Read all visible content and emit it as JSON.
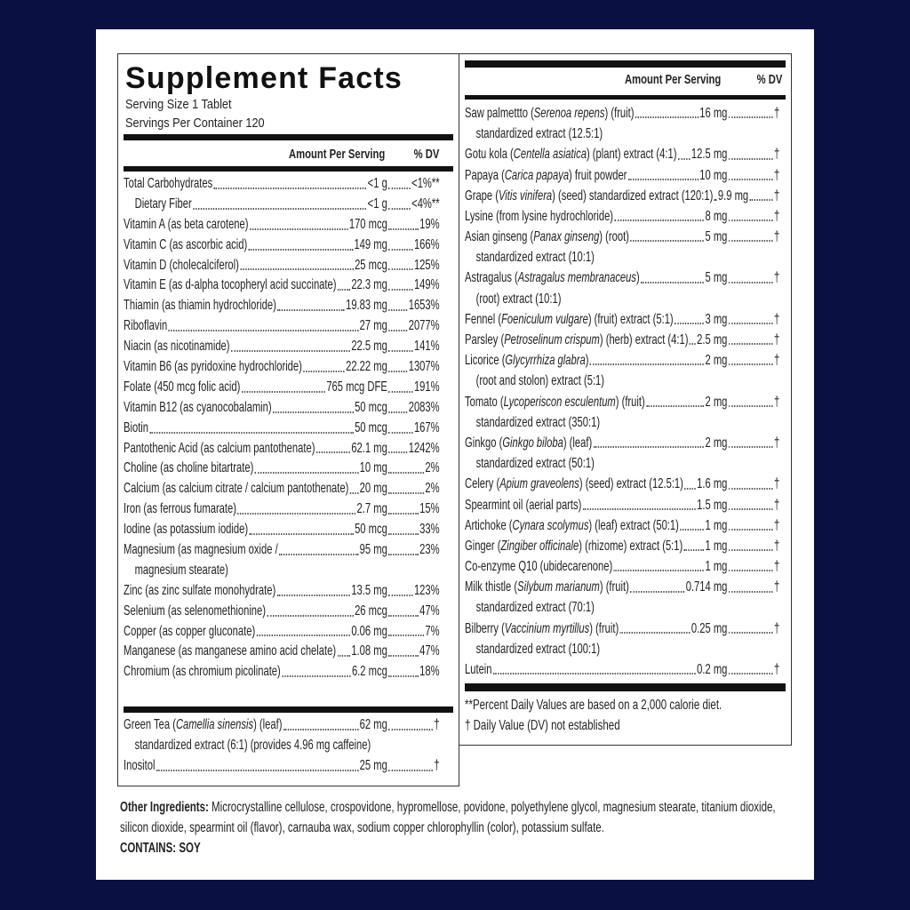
{
  "title": "Supplement Facts",
  "serving_size": "Serving Size 1 Tablet",
  "servings_per_container": "Servings Per Container 120",
  "header": {
    "amount": "Amount Per Serving",
    "dv": "% DV"
  },
  "left_rows": [
    {
      "name": "Total Carbohydrates",
      "amount": "<1 g",
      "dv": "<1%**"
    },
    {
      "name": "Dietary Fiber",
      "amount": "<1 g",
      "dv": "<4%**",
      "indent": true
    },
    {
      "name": "Vitamin A (as beta carotene)",
      "amount": "170 mcg",
      "dv": "19%"
    },
    {
      "name": "Vitamin C (as ascorbic acid)",
      "amount": "149 mg",
      "dv": "166%"
    },
    {
      "name": "Vitamin D (cholecalciferol)",
      "amount": "25 mcg",
      "dv": "125%"
    },
    {
      "name": "Vitamin E (as d-alpha tocopheryl acid succinate)",
      "amount": "22.3 mg",
      "dv": "149%"
    },
    {
      "name": "Thiamin (as thiamin hydrochloride)",
      "amount": "19.83 mg",
      "dv": "1653%"
    },
    {
      "name": "Riboflavin",
      "amount": "27 mg",
      "dv": "2077%"
    },
    {
      "name": "Niacin (as nicotinamide)",
      "amount": "22.5 mg",
      "dv": "141%"
    },
    {
      "name": "Vitamin B6 (as pyridoxine hydrochloride)",
      "amount": "22.22 mg",
      "dv": "1307%"
    },
    {
      "name": "Folate (450 mcg folic acid)",
      "amount": "765 mcg DFE",
      "dv": "191%"
    },
    {
      "name": "Vitamin B12 (as cyanocobalamin)",
      "amount": "50 mcg",
      "dv": "2083%"
    },
    {
      "name": "Biotin",
      "amount": "50 mcg",
      "dv": "167%"
    },
    {
      "name": "Pantothenic Acid (as calcium pantothenate)",
      "amount": "62.1 mg",
      "dv": "1242%"
    },
    {
      "name": "Choline (as choline bitartrate)",
      "amount": "10 mg",
      "dv": "2%"
    },
    {
      "name": "Calcium (as calcium citrate / calcium pantothenate)",
      "amount": "20 mg",
      "dv": "2%"
    },
    {
      "name": "Iron (as ferrous fumarate)",
      "amount": "2.7 mg",
      "dv": "15%"
    },
    {
      "name": "Iodine (as potassium iodide)",
      "amount": "50 mcg",
      "dv": "33%"
    },
    {
      "name": "Magnesium (as magnesium oxide /",
      "amount": "95 mg",
      "dv": "23%",
      "cont": "magnesium stearate)"
    },
    {
      "name": "Zinc (as zinc sulfate monohydrate)",
      "amount": "13.5 mg",
      "dv": "123%"
    },
    {
      "name": "Selenium (as selenomethionine)",
      "amount": "26 mcg",
      "dv": "47%"
    },
    {
      "name": "Copper (as copper gluconate)",
      "amount": "0.06 mg",
      "dv": "7%"
    },
    {
      "name": "Manganese (as manganese amino acid chelate)",
      "amount": "1.08 mg",
      "dv": "47%"
    },
    {
      "name": "Chromium (as chromium picolinate)",
      "amount": "6.2 mcg",
      "dv": "18%"
    }
  ],
  "left_rows_2": [
    {
      "pre": "Green Tea (",
      "it": "Camellia sinensis",
      "post": ") (leaf)",
      "amount": "62 mg",
      "dv": "†",
      "cont": "standardized extract (6:1) (provides 4.96 mg caffeine)"
    },
    {
      "pre": "Inositol",
      "amount": "25 mg",
      "dv": "†"
    }
  ],
  "right_rows": [
    {
      "pre": "Saw palmettto (",
      "it": "Serenoa repens",
      "post": ") (fruit)",
      "amount": "16 mg",
      "dv": "†",
      "cont": "standardized extract (12.5:1)"
    },
    {
      "pre": "Gotu kola (",
      "it": "Centella asiatica",
      "post": ") (plant) extract (4:1)",
      "amount": "12.5 mg",
      "dv": "†"
    },
    {
      "pre": "Papaya (",
      "it": "Carica papaya",
      "post": ") fruit powder",
      "amount": "10 mg",
      "dv": "†"
    },
    {
      "pre": "Grape (",
      "it": "Vitis vinifera",
      "post": ") (seed) standardized extract (120:1)",
      "amount": "9.9 mg",
      "dv": "†"
    },
    {
      "pre": "Lysine (from lysine hydrochloride)",
      "amount": "8 mg",
      "dv": "†"
    },
    {
      "pre": "Asian ginseng (",
      "it": "Panax ginseng",
      "post": ") (root)",
      "amount": "5 mg",
      "dv": "†",
      "cont": "standardized extract (10:1)"
    },
    {
      "pre": "Astragalus (",
      "it": "Astragalus membranaceus",
      "post": ")",
      "amount": "5 mg",
      "dv": "†",
      "cont": "(root) extract (10:1)"
    },
    {
      "pre": "Fennel (",
      "it": "Foeniculum vulgare",
      "post": ") (fruit) extract (5:1)",
      "amount": "3 mg",
      "dv": "†"
    },
    {
      "pre": "Parsley (",
      "it": "Petroselinum crispum",
      "post": ") (herb) extract (4:1)",
      "amount": "2.5 mg",
      "dv": "†"
    },
    {
      "pre": "Licorice (",
      "it": "Glycyrrhiza glabra",
      "post": ")",
      "amount": "2 mg",
      "dv": "†",
      "cont": "(root and stolon) extract (5:1)"
    },
    {
      "pre": "Tomato (",
      "it": "Lycoperiscon esculentum",
      "post": ") (fruit)",
      "amount": "2 mg",
      "dv": "†",
      "cont": "standardized extract (350:1)"
    },
    {
      "pre": "Ginkgo (",
      "it": "Ginkgo biloba",
      "post": ") (leaf)",
      "amount": "2 mg",
      "dv": "†",
      "cont": "standardized extract (50:1)"
    },
    {
      "pre": "Celery (",
      "it": "Apium graveolens",
      "post": ") (seed) extract (12.5:1)",
      "amount": "1.6 mg",
      "dv": "†"
    },
    {
      "pre": "Spearmint oil (aerial parts)",
      "amount": "1.5 mg",
      "dv": "†"
    },
    {
      "pre": "Artichoke (",
      "it": "Cynara scolymus",
      "post": ") (leaf) extract (50:1)",
      "amount": "1 mg",
      "dv": "†"
    },
    {
      "pre": "Ginger (",
      "it": "Zingiber officinale",
      "post": ") (rhizome) extract (5:1)",
      "amount": "1 mg",
      "dv": "†"
    },
    {
      "pre": "Co-enzyme Q10 (ubidecarenone)",
      "amount": "1 mg",
      "dv": "†"
    },
    {
      "pre": "Milk thistle (",
      "it": "Silybum marianum",
      "post": ") (fruit)",
      "amount": "0.714 mg",
      "dv": "†",
      "cont": "standardized extract (70:1)"
    },
    {
      "pre": "Bilberry (",
      "it": "Vaccinium myrtillus",
      "post": ") (fruit)",
      "amount": "0.25 mg",
      "dv": "†",
      "cont": "standardized extract (100:1)"
    },
    {
      "pre": "Lutein",
      "amount": "0.2 mg",
      "dv": "†"
    }
  ],
  "footnotes": [
    "**Percent Daily Values are based on a 2,000 calorie diet.",
    "† Daily Value (DV) not established"
  ],
  "other_ingredients": {
    "label": "Other Ingredients:",
    "text": " Microcrystalline cellulose, crospovidone, hypromellose, povidone, polyethylene glycol, magnesium stearate, titanium dioxide, silicon dioxide, spearmint oil (flavor), carnauba wax, sodium copper chlorophyllin (color), potassium sulfate.",
    "contains": "CONTAINS: SOY"
  }
}
